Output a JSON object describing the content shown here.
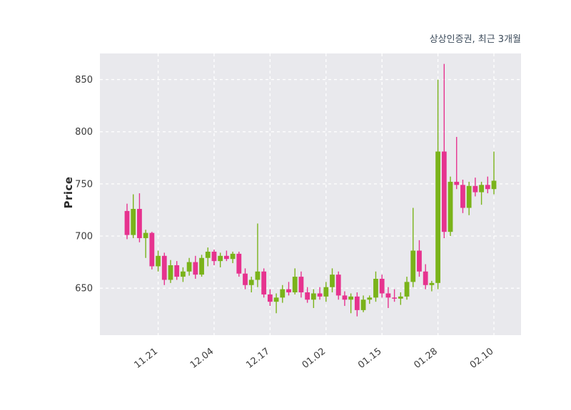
{
  "chart_data": {
    "type": "candlestick",
    "title": "상상인증권, 최근 3개월",
    "ylabel": "Price",
    "ylim": [
      605,
      875
    ],
    "yticks": [
      650,
      700,
      750,
      800,
      850
    ],
    "xtick_labels": [
      "11.21",
      "12.04",
      "12.17",
      "01.02",
      "01.15",
      "01.28",
      "02.10"
    ],
    "xtick_indices": [
      5,
      14,
      23,
      32,
      41,
      50,
      59
    ],
    "grid": "white-dashed",
    "legend_position": "none",
    "up_color": "#7ab31a",
    "down_color": "#e6338f",
    "plot_bg": "#e9e9ed",
    "columns": [
      "open",
      "high",
      "low",
      "close"
    ],
    "candles": [
      [
        724,
        731,
        697,
        701
      ],
      [
        701,
        740,
        698,
        726
      ],
      [
        726,
        741,
        694,
        698
      ],
      [
        698,
        706,
        679,
        703
      ],
      [
        703,
        704,
        668,
        671
      ],
      [
        671,
        686,
        666,
        681
      ],
      [
        681,
        684,
        653,
        658
      ],
      [
        658,
        677,
        655,
        672
      ],
      [
        672,
        676,
        658,
        661
      ],
      [
        661,
        670,
        656,
        666
      ],
      [
        666,
        679,
        662,
        675
      ],
      [
        675,
        681,
        659,
        663
      ],
      [
        663,
        682,
        661,
        679
      ],
      [
        679,
        689,
        671,
        685
      ],
      [
        685,
        687,
        672,
        676
      ],
      [
        676,
        684,
        670,
        681
      ],
      [
        681,
        686,
        676,
        678
      ],
      [
        678,
        685,
        674,
        683
      ],
      [
        683,
        685,
        661,
        664
      ],
      [
        664,
        669,
        649,
        653
      ],
      [
        653,
        661,
        646,
        658
      ],
      [
        658,
        712,
        651,
        666
      ],
      [
        666,
        669,
        641,
        644
      ],
      [
        644,
        649,
        633,
        637
      ],
      [
        637,
        645,
        626,
        641
      ],
      [
        641,
        653,
        636,
        649
      ],
      [
        649,
        656,
        643,
        646
      ],
      [
        646,
        669,
        644,
        661
      ],
      [
        661,
        666,
        641,
        646
      ],
      [
        646,
        651,
        636,
        639
      ],
      [
        639,
        649,
        631,
        645
      ],
      [
        645,
        651,
        639,
        642
      ],
      [
        642,
        656,
        637,
        651
      ],
      [
        651,
        669,
        646,
        663
      ],
      [
        663,
        666,
        639,
        643
      ],
      [
        643,
        647,
        633,
        639
      ],
      [
        639,
        645,
        626,
        642
      ],
      [
        642,
        646,
        623,
        629
      ],
      [
        629,
        643,
        627,
        639
      ],
      [
        639,
        643,
        635,
        641
      ],
      [
        641,
        666,
        637,
        659
      ],
      [
        659,
        663,
        641,
        645
      ],
      [
        645,
        651,
        631,
        641
      ],
      [
        641,
        649,
        637,
        640
      ],
      [
        640,
        646,
        634,
        642
      ],
      [
        642,
        661,
        639,
        656
      ],
      [
        656,
        727,
        651,
        686
      ],
      [
        686,
        696,
        661,
        666
      ],
      [
        666,
        673,
        649,
        653
      ],
      [
        653,
        657,
        647,
        655
      ],
      [
        655,
        850,
        649,
        781
      ],
      [
        781,
        865,
        698,
        704
      ],
      [
        704,
        757,
        700,
        752
      ],
      [
        752,
        795,
        745,
        749
      ],
      [
        749,
        754,
        722,
        727
      ],
      [
        727,
        752,
        720,
        748
      ],
      [
        748,
        756,
        738,
        742
      ],
      [
        742,
        752,
        730,
        749
      ],
      [
        749,
        757,
        741,
        745
      ],
      [
        745,
        781,
        740,
        753
      ]
    ]
  }
}
